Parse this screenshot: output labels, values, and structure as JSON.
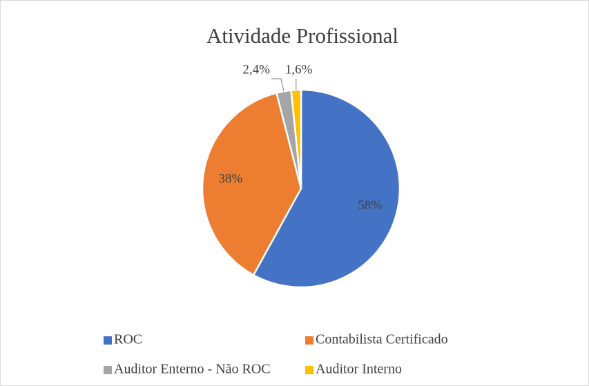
{
  "chart_data": {
    "type": "pie",
    "title": "Atividade Profissional",
    "categories": [
      "ROC",
      "Contabilista Certificado",
      "Auditor Enterno - Não ROC",
      "Auditor Interno"
    ],
    "values": [
      58,
      38,
      2.4,
      1.6
    ],
    "value_labels": [
      "58%",
      "38%",
      "2,4%",
      "1,6%"
    ],
    "colors": [
      "#4472c4",
      "#ed7d31",
      "#a5a5a5",
      "#ffc000"
    ],
    "legend": "bottom"
  }
}
